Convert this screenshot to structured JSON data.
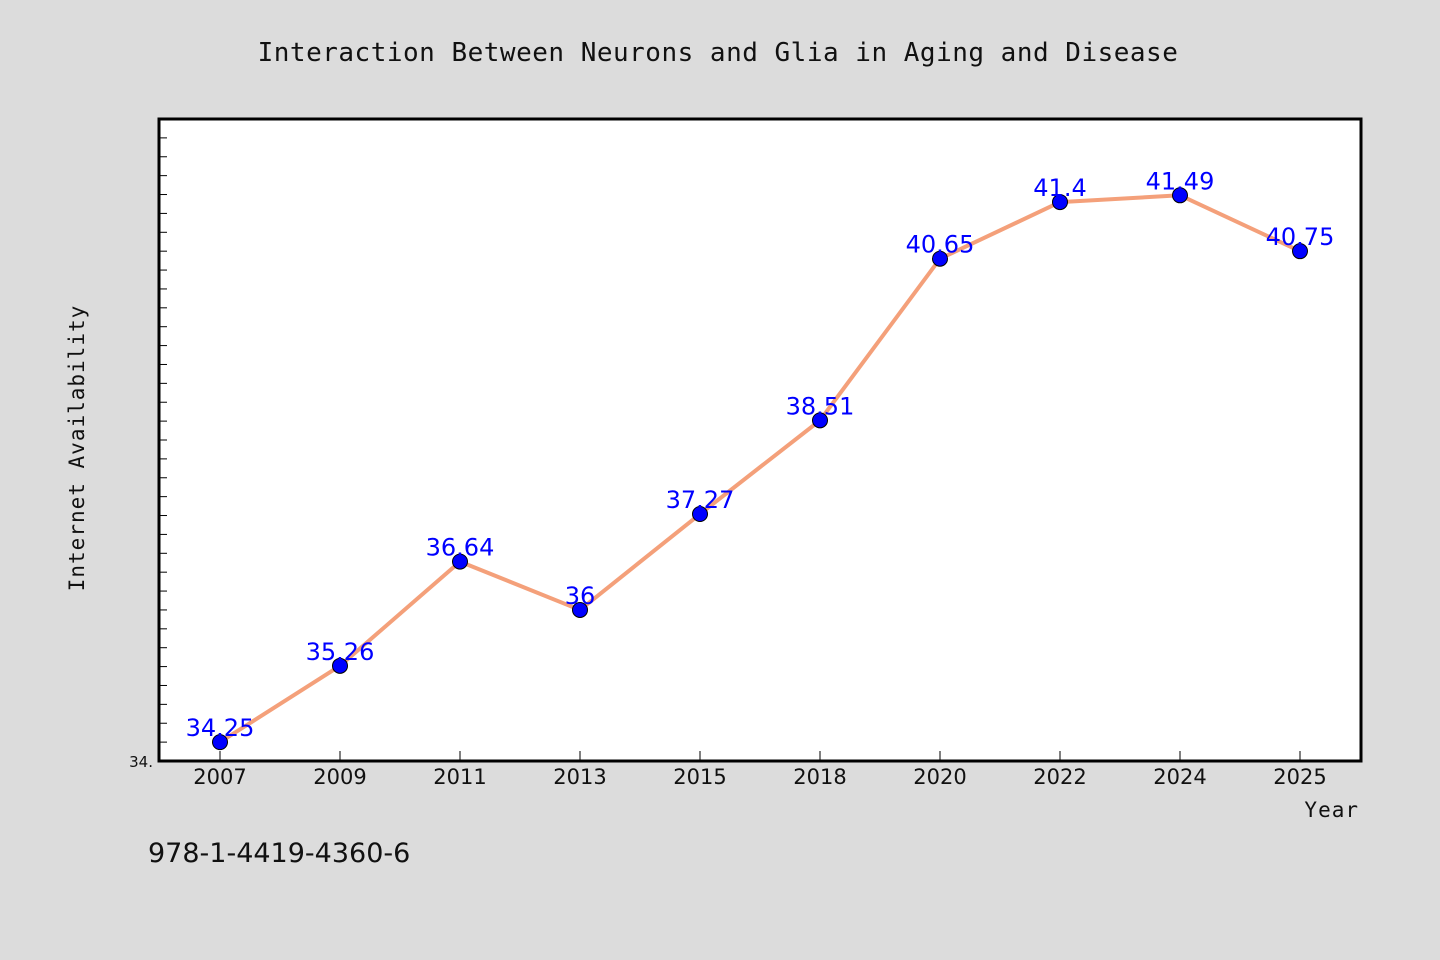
{
  "chart_data": {
    "type": "line",
    "title": "Interaction Between Neurons and Glia in Aging and Disease",
    "xlabel": "Year",
    "ylabel": "Internet Availability",
    "categories": [
      "2007",
      "2009",
      "2011",
      "2013",
      "2015",
      "2018",
      "2020",
      "2022",
      "2024",
      "2025"
    ],
    "series": [
      {
        "values": [
          34.25,
          35.26,
          36.64,
          36,
          37.27,
          38.51,
          40.65,
          41.4,
          41.49,
          40.75
        ],
        "data_labels": [
          "34.25",
          "35.26",
          "36.64",
          "36",
          "37.27",
          "38.51",
          "40.65",
          "41.4",
          "41.49",
          "40.75"
        ],
        "line_color": "#f4a07a",
        "marker_color": "#0000ff"
      }
    ],
    "ylim": [
      34.0,
      42.5
    ],
    "ytick_label": "34.",
    "grid": false,
    "legend": "none"
  },
  "footer": {
    "isbn": "978-1-4419-4360-6"
  }
}
